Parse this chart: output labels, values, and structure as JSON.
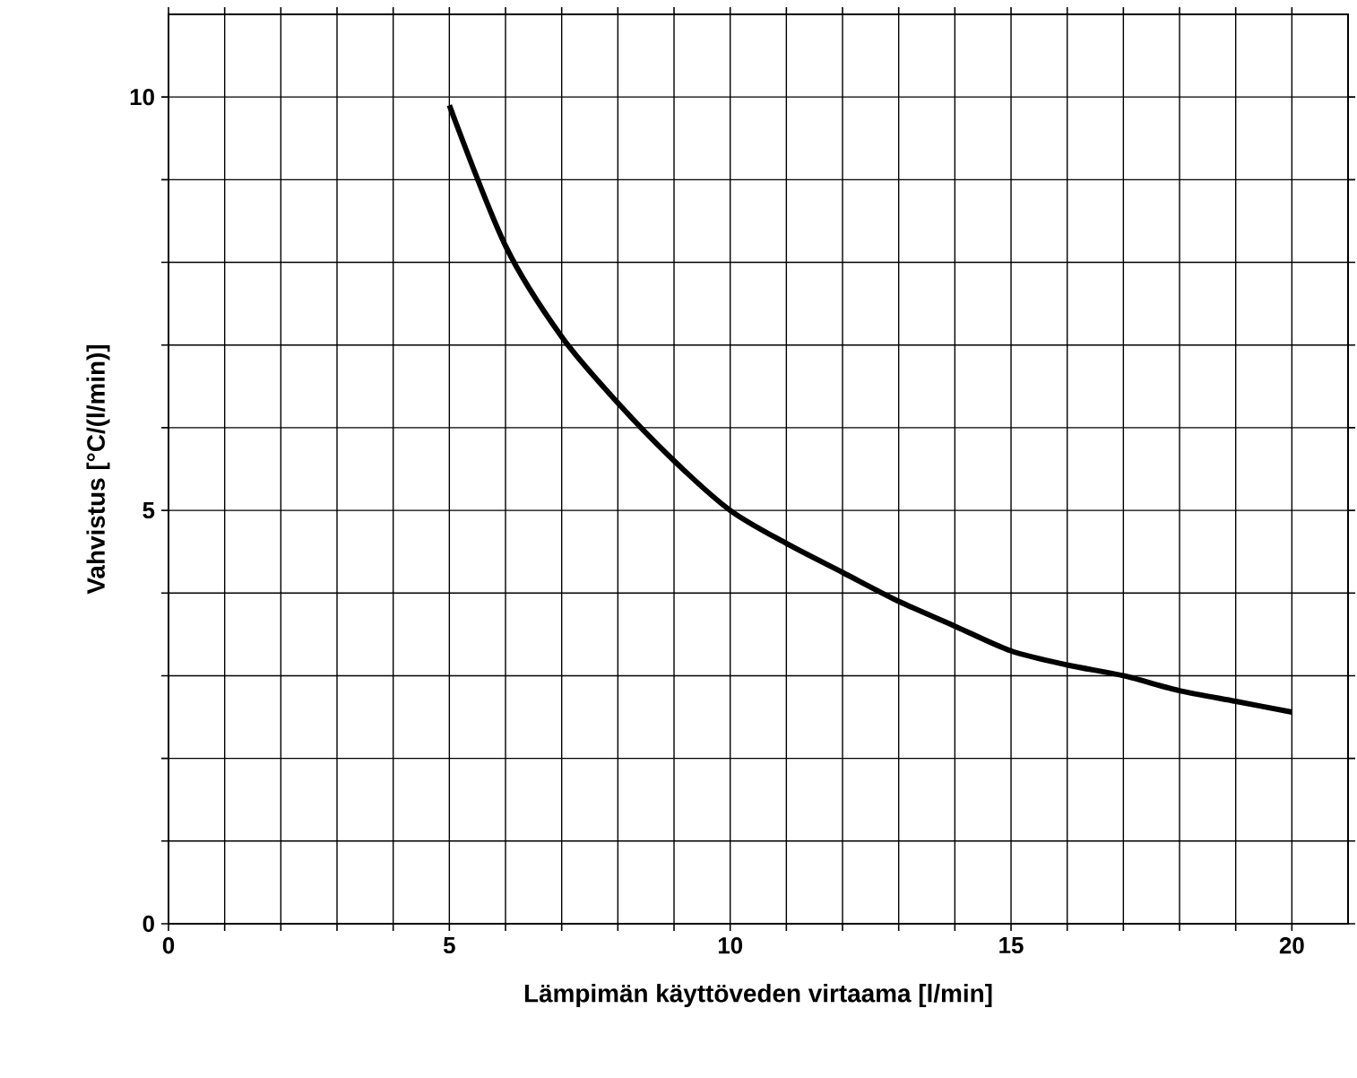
{
  "chart_data": {
    "type": "line",
    "xlabel": "Lämpimän käyttöveden virtaama [l/min]",
    "ylabel": "Vahvistus [°C/(l/min)]",
    "x": [
      5,
      6,
      7,
      8,
      9,
      10,
      11,
      12,
      13,
      14,
      15,
      16,
      17,
      18,
      19,
      20
    ],
    "series": [
      {
        "color": "#000000",
        "values": [
          9.9,
          8.2,
          7.1,
          6.3,
          5.6,
          5.0,
          4.6,
          4.25,
          3.9,
          3.6,
          3.3,
          3.13,
          3.0,
          2.82,
          2.69,
          2.56
        ]
      }
    ],
    "xlim": [
      0,
      21
    ],
    "ylim": [
      0,
      11
    ],
    "xticks": [
      0,
      {
        "value": 1,
        "label": null
      },
      {
        "value": 2,
        "label": null
      },
      {
        "value": 3,
        "label": null
      },
      {
        "value": 4,
        "label": null
      },
      5,
      {
        "value": 6,
        "label": null
      },
      {
        "value": 7,
        "label": null
      },
      {
        "value": 8,
        "label": null
      },
      {
        "value": 9,
        "label": null
      },
      10,
      {
        "value": 11,
        "label": null
      },
      {
        "value": 12,
        "label": null
      },
      {
        "value": 13,
        "label": null
      },
      {
        "value": 14,
        "label": null
      },
      15,
      {
        "value": 16,
        "label": null
      },
      {
        "value": 17,
        "label": null
      },
      {
        "value": 18,
        "label": null
      },
      {
        "value": 19,
        "label": null
      },
      20
    ],
    "yticks": [
      0,
      {
        "value": 1,
        "label": null
      },
      {
        "value": 2,
        "label": null
      },
      {
        "value": 3,
        "label": null
      },
      {
        "value": 4,
        "label": null
      },
      5,
      {
        "value": 6,
        "label": null
      },
      {
        "value": 7,
        "label": null
      },
      {
        "value": 8,
        "label": null
      },
      {
        "value": 9,
        "label": null
      },
      10
    ],
    "grid": true,
    "marker": "none",
    "line_style": "solid"
  }
}
